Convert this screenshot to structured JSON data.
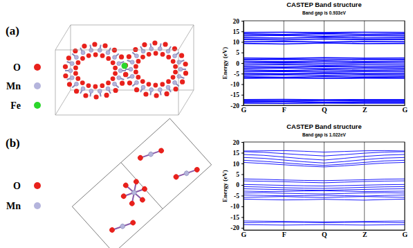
{
  "chart_data": [
    {
      "type": "line",
      "title": "CASTEP Band structure",
      "subtitle": "Band gap is 0.933eV",
      "y_label": "Energy (eV)",
      "color": "#0000ff",
      "grid": true,
      "x": [
        0,
        1,
        2,
        3,
        4
      ],
      "xlim": [
        0,
        4
      ],
      "xticks": [
        {
          "value": 0,
          "label": "G"
        },
        {
          "value": 1,
          "label": "F"
        },
        {
          "value": 2,
          "label": "Q"
        },
        {
          "value": 3,
          "label": "Z"
        },
        {
          "value": 4,
          "label": "G"
        }
      ],
      "ylim": [
        -20,
        20
      ],
      "yticks": [
        -20,
        -15,
        -10,
        -5,
        0,
        5,
        10,
        15,
        20
      ],
      "series": [
        {
          "values": [
            14.5,
            14.6,
            14.4,
            14.6,
            14.5
          ]
        },
        {
          "values": [
            13.8,
            13.5,
            13.9,
            13.6,
            13.8
          ]
        },
        {
          "values": [
            12.9,
            13.1,
            12.7,
            13.0,
            12.9
          ]
        },
        {
          "values": [
            12.0,
            11.8,
            12.2,
            11.9,
            12.0
          ]
        },
        {
          "values": [
            11.2,
            11.0,
            11.4,
            11.1,
            11.2
          ]
        },
        {
          "values": [
            10.1,
            10.3,
            9.9,
            10.2,
            10.1
          ]
        },
        {
          "values": [
            9.3,
            9.0,
            9.5,
            9.2,
            9.3
          ]
        },
        {
          "values": [
            2.4,
            2.2,
            2.5,
            2.3,
            2.4
          ]
        },
        {
          "values": [
            1.6,
            1.8,
            1.5,
            1.7,
            1.6
          ]
        },
        {
          "values": [
            0.8,
            0.6,
            0.9,
            0.7,
            0.8
          ]
        },
        {
          "values": [
            0,
            0.2,
            -0.1,
            0.1,
            0
          ]
        },
        {
          "values": [
            -0.9,
            -0.7,
            -1.0,
            -0.8,
            -0.9
          ]
        },
        {
          "values": [
            -1.7,
            -1.9,
            -1.6,
            -1.8,
            -1.7
          ]
        },
        {
          "values": [
            -2.5,
            -2.3,
            -2.6,
            -2.4,
            -2.5
          ]
        },
        {
          "values": [
            -3.3,
            -3.5,
            -3.2,
            -3.4,
            -3.3
          ]
        },
        {
          "values": [
            -4.1,
            -3.9,
            -4.2,
            -4.0,
            -4.1
          ]
        },
        {
          "values": [
            -4.9,
            -5.1,
            -4.8,
            -5.0,
            -4.9
          ]
        },
        {
          "values": [
            -5.7,
            -5.5,
            -5.8,
            -5.6,
            -5.7
          ]
        },
        {
          "values": [
            -6.5,
            -6.7,
            -6.4,
            -6.6,
            -6.5
          ]
        },
        {
          "values": [
            -7.2,
            -7.0,
            -7.3,
            -7.1,
            -7.2
          ]
        },
        {
          "values": [
            -17.3,
            -17.2,
            -17.4,
            -17.3,
            -17.3
          ]
        },
        {
          "values": [
            -17.8,
            -17.9,
            -17.7,
            -17.8,
            -17.8
          ]
        },
        {
          "values": [
            -18.4,
            -18.3,
            -18.5,
            -18.4,
            -18.4
          ]
        },
        {
          "values": [
            -19,
            -19.1,
            -18.9,
            -19,
            -19
          ]
        }
      ]
    },
    {
      "type": "line",
      "title": "CASTEP Band structure",
      "subtitle": "Band gap is 1.022eV",
      "y_label": "Energy (eV)",
      "color": "#0000ff",
      "grid": true,
      "x": [
        0,
        0.5,
        1,
        1.5,
        2,
        2.5,
        3,
        3.5,
        4
      ],
      "xlim": [
        0,
        4
      ],
      "xticks": [
        {
          "value": 0,
          "label": "G"
        },
        {
          "value": 1,
          "label": "F"
        },
        {
          "value": 2,
          "label": "Q"
        },
        {
          "value": 3,
          "label": "Z"
        },
        {
          "value": 4,
          "label": "G"
        }
      ],
      "ylim": [
        -21,
        20
      ],
      "yticks": [
        -20,
        -15,
        -10,
        -5,
        0,
        5,
        10,
        15,
        20
      ],
      "series": [
        {
          "values": [
            15.8,
            15.9,
            16.0,
            15.7,
            15.3,
            15.6,
            15.9,
            16.0,
            15.8
          ]
        },
        {
          "values": [
            15.5,
            15.2,
            14.6,
            14.0,
            13.5,
            14.1,
            14.8,
            15.3,
            15.5
          ]
        },
        {
          "values": [
            14.2,
            13.8,
            13.0,
            12.2,
            11.6,
            12.4,
            13.3,
            13.9,
            14.2
          ]
        },
        {
          "values": [
            12.8,
            12.4,
            11.6,
            10.8,
            10.2,
            10.9,
            11.8,
            12.5,
            12.8
          ]
        },
        {
          "values": [
            11.5,
            11.0,
            10.3,
            9.6,
            9.1,
            9.7,
            10.5,
            11.2,
            11.5
          ]
        },
        {
          "values": [
            10.5,
            10.0,
            9.4,
            8.8,
            8.4,
            8.9,
            9.6,
            10.2,
            10.5
          ]
        },
        {
          "values": [
            2.8,
            2.6,
            2.3,
            2.1,
            2.0,
            2.2,
            2.4,
            2.7,
            2.8
          ]
        },
        {
          "values": [
            1.9,
            1.7,
            1.5,
            1.2,
            1.0,
            1.3,
            1.6,
            1.8,
            1.9
          ]
        },
        {
          "values": [
            0.2,
            0.0,
            -0.2,
            -0.4,
            -0.5,
            -0.3,
            -0.1,
            0.1,
            0.2
          ]
        },
        {
          "values": [
            -0.8,
            -1.0,
            -1.3,
            -1.5,
            -1.6,
            -1.4,
            -1.1,
            -0.9,
            -0.8
          ]
        },
        {
          "values": [
            -1.8,
            -2.0,
            -2.2,
            -2.4,
            -2.5,
            -2.3,
            -2.1,
            -1.9,
            -1.8
          ]
        },
        {
          "values": [
            -2.9,
            -3.1,
            -3.0,
            -2.8,
            -2.7,
            -2.9,
            -3.1,
            -3.0,
            -2.9
          ]
        },
        {
          "values": [
            -3.8,
            -3.6,
            -3.9,
            -4.1,
            -4.2,
            -4.0,
            -3.7,
            -3.6,
            -3.8
          ]
        },
        {
          "values": [
            -4.7,
            -4.9,
            -5.1,
            -5.0,
            -4.8,
            -5.0,
            -5.2,
            -4.9,
            -4.7
          ]
        },
        {
          "values": [
            -5.8,
            -5.6,
            -5.4,
            -5.7,
            -5.9,
            -5.6,
            -5.4,
            -5.6,
            -5.8
          ]
        },
        {
          "values": [
            -6.6,
            -6.8,
            -7.0,
            -6.9,
            -6.7,
            -6.9,
            -7.1,
            -6.8,
            -6.6
          ]
        },
        {
          "values": [
            -16.8,
            -16.9,
            -17.0,
            -17.1,
            -17.2,
            -17.1,
            -17.0,
            -16.9,
            -16.8
          ]
        },
        {
          "values": [
            -17.6,
            -17.5,
            -17.4,
            -17.5,
            -17.6,
            -17.5,
            -17.4,
            -17.5,
            -17.6
          ]
        },
        {
          "values": [
            -18.5,
            -18.6,
            -18.7,
            -18.6,
            -18.5,
            -18.6,
            -18.7,
            -18.6,
            -18.5
          ]
        }
      ]
    }
  ],
  "panels": [
    {
      "label": "(a)",
      "atoms": [
        {
          "symbol": "O",
          "color": "#e8211c"
        },
        {
          "symbol": "Mn",
          "color": "#b4b4dc"
        },
        {
          "symbol": "Fe",
          "color": "#2bd62b"
        }
      ]
    },
    {
      "label": "(b)",
      "atoms": [
        {
          "symbol": "O",
          "color": "#e8211c"
        },
        {
          "symbol": "Mn",
          "color": "#b4b4dc"
        }
      ]
    }
  ]
}
